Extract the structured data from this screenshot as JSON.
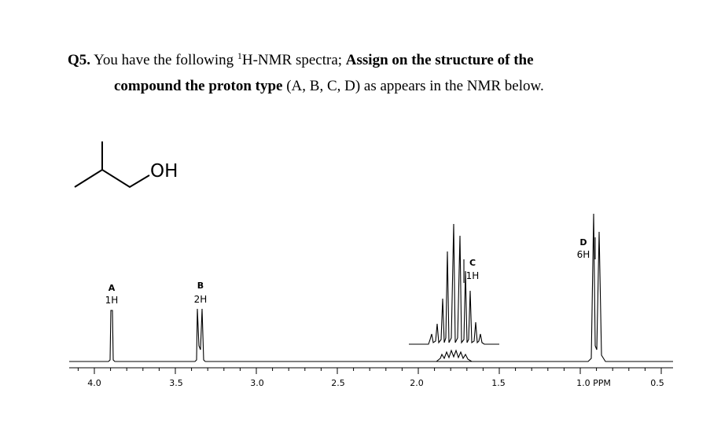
{
  "question": {
    "number": "Q5.",
    "intro": "You have the following",
    "superscript": "1",
    "intro_rest": "H-NMR spectra;",
    "bold_1": "Assign on the structure of the",
    "bold_2": "compound the proton type",
    "rest": "(A, B, C, D) as appears in the NMR below."
  },
  "structure": {
    "label": "OH"
  },
  "spectrum": {
    "axis_labels": [
      "4.0",
      "3.5",
      "3.0",
      "2.5",
      "2.0",
      "1.5",
      "1.0 PPM",
      "0.5"
    ],
    "peaks": [
      {
        "label": "A",
        "integration": "1H"
      },
      {
        "label": "B",
        "integration": "2H"
      },
      {
        "label": "C",
        "integration": "1H"
      },
      {
        "label": "D",
        "integration": "6H"
      }
    ]
  }
}
